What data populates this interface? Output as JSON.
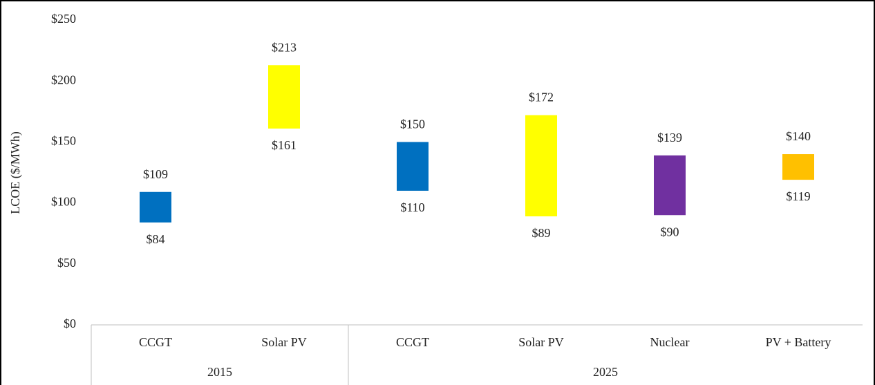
{
  "chart_data": {
    "type": "floating_bar",
    "ylabel": "LCOE ($/MWh)",
    "ylim": [
      0,
      250
    ],
    "yticks": [
      {
        "value": 0,
        "label": "$0"
      },
      {
        "value": 50,
        "label": "$50"
      },
      {
        "value": 100,
        "label": "$100"
      },
      {
        "value": 150,
        "label": "$150"
      },
      {
        "value": 200,
        "label": "$200"
      },
      {
        "value": 250,
        "label": "$250"
      }
    ],
    "groups": [
      {
        "label": "2015",
        "bars": [
          {
            "category": "CCGT",
            "low": 84,
            "high": 109,
            "low_label": "$84",
            "high_label": "$109",
            "color": "#0070c0"
          },
          {
            "category": "Solar PV",
            "low": 161,
            "high": 213,
            "low_label": "$161",
            "high_label": "$213",
            "color": "#ffff00"
          }
        ]
      },
      {
        "label": "2025",
        "bars": [
          {
            "category": "CCGT",
            "low": 110,
            "high": 150,
            "low_label": "$110",
            "high_label": "$150",
            "color": "#0070c0"
          },
          {
            "category": "Solar PV",
            "low": 89,
            "high": 172,
            "low_label": "$89",
            "high_label": "$172",
            "color": "#ffff00"
          },
          {
            "category": "Nuclear",
            "low": 90,
            "high": 139,
            "low_label": "$90",
            "high_label": "$139",
            "color": "#7030a0"
          },
          {
            "category": "PV + Battery",
            "low": 119,
            "high": 140,
            "low_label": "$119",
            "high_label": "$140",
            "color": "#ffc000"
          }
        ]
      }
    ]
  }
}
